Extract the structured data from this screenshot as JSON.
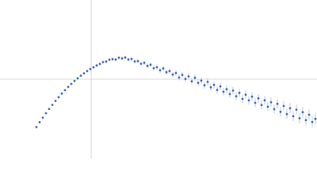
{
  "chart_data": {
    "type": "scatter",
    "x": [
      46,
      50,
      54,
      58,
      62,
      66,
      70,
      74,
      78,
      82,
      86,
      90,
      94,
      98,
      102,
      106,
      110,
      114,
      118,
      122,
      126,
      130,
      134,
      138,
      142,
      146,
      150,
      154,
      158,
      162,
      166,
      170,
      174,
      178,
      182,
      186,
      190,
      194,
      198,
      202,
      206,
      210,
      214,
      218,
      222,
      226,
      230,
      234,
      238,
      242,
      246,
      250,
      254,
      258,
      262,
      266,
      270,
      274,
      278,
      282,
      286,
      290,
      294,
      298,
      302,
      306,
      310,
      314,
      318,
      322,
      326,
      330,
      334,
      338,
      342,
      346,
      350,
      354,
      358,
      362,
      366,
      370,
      374,
      378,
      382,
      386,
      390,
      394,
      398
    ],
    "values": [
      39.5,
      45.6,
      51.4,
      57,
      62.4,
      67.5,
      72.5,
      77.2,
      81.8,
      86.1,
      90.2,
      94,
      97.7,
      101.1,
      104.4,
      107.4,
      110.2,
      112.8,
      115.1,
      117.3,
      119.2,
      121.5,
      122.3,
      124.6,
      125.2,
      124.9,
      127.1,
      126.2,
      127.4,
      124.9,
      125.6,
      122.4,
      122.8,
      119.5,
      120.6,
      116.8,
      118.2,
      113.9,
      115.1,
      111.2,
      113.6,
      108.8,
      110.2,
      105.9,
      107.7,
      102.1,
      105.4,
      100.2,
      103.5,
      97.3,
      101.8,
      95.4,
      98.1,
      92.3,
      96.6,
      89.7,
      92.8,
      86.4,
      90.9,
      84.1,
      87.3,
      81.2,
      85.6,
      78.4,
      82.7,
      75.1,
      80.4,
      73.2,
      77.9,
      70.1,
      75.8,
      67.4,
      73.3,
      65.2,
      70.9,
      62.1,
      68.8,
      58.7,
      66.1,
      55.9,
      63.4,
      53.2,
      61.5,
      50.6,
      58.3,
      48.2,
      55.1,
      45.9,
      49.8
    ],
    "errors": [
      0.4,
      0.5,
      0.5,
      0.6,
      0.7,
      0.7,
      0.8,
      0.9,
      0.9,
      1,
      1.1,
      1.2,
      1.2,
      1.3,
      1.4,
      1.4,
      1.5,
      1.6,
      1.7,
      1.7,
      1.8,
      1.9,
      2,
      2,
      2.1,
      2.2,
      2.3,
      2.3,
      2.4,
      2.5,
      2.6,
      2.6,
      2.7,
      2.8,
      2.8,
      2.9,
      3,
      3.1,
      3.1,
      3.2,
      3.3,
      3.4,
      3.4,
      3.5,
      3.6,
      3.7,
      3.7,
      3.8,
      3.9,
      4,
      4,
      4.1,
      4.2,
      4.2,
      4.3,
      4.4,
      4.5,
      4.5,
      4.6,
      4.7,
      4.8,
      4.8,
      4.9,
      5,
      5.1,
      5.1,
      5.2,
      5.3,
      5.4,
      5.4,
      5.5,
      5.6,
      5.6,
      5.7,
      5.8,
      5.9,
      5.9,
      6,
      6.1,
      6.2,
      6.2,
      6.3,
      6.4,
      6.5,
      6.5,
      6.6,
      6.7,
      6.8,
      7
    ],
    "color": "#4469b8",
    "error_color": "#aabbdf",
    "xlim": [
      0,
      400
    ],
    "ylim": [
      0,
      200
    ],
    "reference_lines": {
      "x": 115,
      "y": 100,
      "color": "#cccccc"
    }
  }
}
